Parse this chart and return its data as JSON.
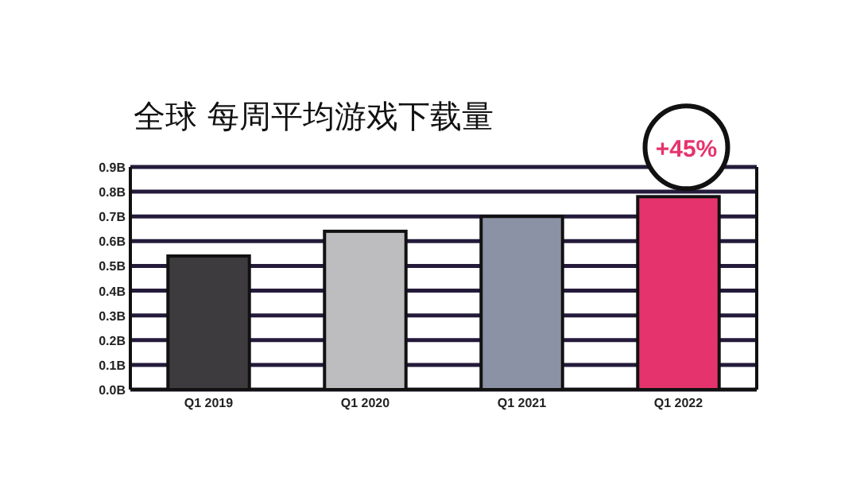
{
  "chart_data": {
    "type": "bar",
    "title": "全球 每周平均游戏下载量",
    "categories": [
      "Q1 2019",
      "Q1 2020",
      "Q1 2021",
      "Q1 2022"
    ],
    "values": [
      0.54,
      0.64,
      0.7,
      0.78
    ],
    "colors": [
      "#3d3b3e",
      "#bdbcbe",
      "#8b92a6",
      "#e5336d"
    ],
    "ylim": [
      0,
      0.9
    ],
    "yticks": [
      {
        "value": 0,
        "label": "0.0B"
      },
      {
        "value": 0.1,
        "label": "0.1B"
      },
      {
        "value": 0.2,
        "label": "0.2B"
      },
      {
        "value": 0.3,
        "label": "0.3B"
      },
      {
        "value": 0.4,
        "label": "0.4B"
      },
      {
        "value": 0.5,
        "label": "0.5B"
      },
      {
        "value": 0.6,
        "label": "0.6B"
      },
      {
        "value": 0.7,
        "label": "0.7B"
      },
      {
        "value": 0.8,
        "label": "0.8B"
      },
      {
        "value": 0.9,
        "label": "0.9B"
      }
    ],
    "grid": "y",
    "annotations": [
      {
        "text": "+45%",
        "x": "Q1 2022",
        "y": 0.78
      }
    ]
  }
}
